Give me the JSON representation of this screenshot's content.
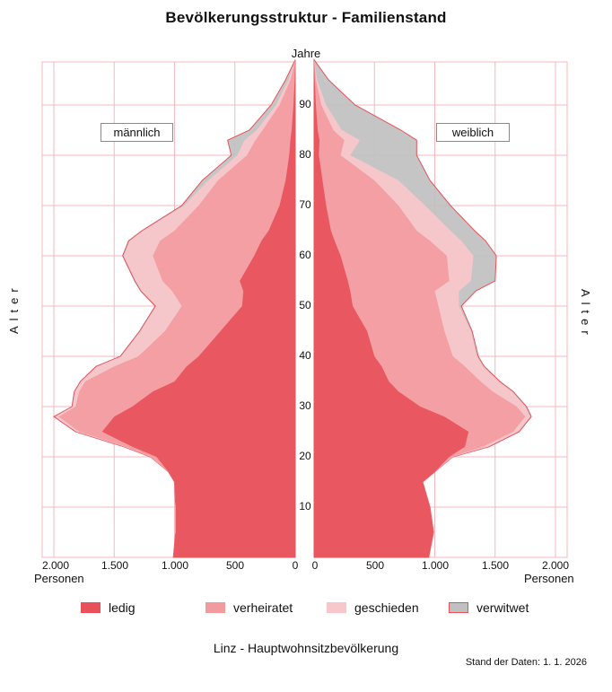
{
  "title": "Bevölkerungsstruktur - Familienstand",
  "axis": {
    "age_label": "Jahre",
    "side_label": "Alter",
    "x_unit_label": "Personen",
    "age_ticks": [
      "10",
      "20",
      "30",
      "40",
      "50",
      "60",
      "70",
      "80",
      "90"
    ],
    "left_ticks": [
      "2.000",
      "1.500",
      "1.000",
      "500",
      "0"
    ],
    "right_ticks": [
      "0",
      "500",
      "1.000",
      "1.500",
      "2.000"
    ]
  },
  "labels": {
    "male": "männlich",
    "female": "weiblich"
  },
  "legend": [
    {
      "key": "ledig",
      "label": "ledig",
      "color": "#E8505A"
    },
    {
      "key": "verheiratet",
      "label": "verheiratet",
      "color": "#F29B9F"
    },
    {
      "key": "geschieden",
      "label": "geschieden",
      "color": "#F8C7CB"
    },
    {
      "key": "verwitwet",
      "label": "verwitwet",
      "color": "#C0C0C0"
    }
  ],
  "colors": {
    "grid": "#F5B8BC",
    "outline": "#E8505A"
  },
  "footer": "Linz - Hauptwohnsitzbevölkerung",
  "stand": "Stand der Daten: 1. 1. 2026",
  "chart_data": {
    "type": "area",
    "subtype": "population-pyramid (stacked, cumulative by marital status)",
    "title": "Bevölkerungsstruktur - Familienstand",
    "subtitle": "Linz - Hauptwohnsitzbevölkerung",
    "note": "Stand der Daten: 1. 1. 2026",
    "ylabel": "Alter (Jahre)",
    "xlabel": "Personen",
    "ylim": [
      0,
      99
    ],
    "xlim": [
      0,
      2000
    ],
    "grid": true,
    "legend_position": "bottom",
    "series_order": [
      "ledig",
      "verheiratet",
      "geschieden",
      "verwitwet"
    ],
    "ages": [
      0,
      5,
      10,
      15,
      17,
      20,
      22,
      25,
      28,
      30,
      33,
      35,
      38,
      40,
      45,
      50,
      53,
      55,
      60,
      63,
      65,
      70,
      75,
      80,
      83,
      85,
      90,
      95,
      99
    ],
    "male": {
      "label": "männlich",
      "cumulative": {
        "ledig": [
          1010,
          990,
          990,
          1000,
          1050,
          1150,
          1350,
          1600,
          1500,
          1350,
          1180,
          1000,
          900,
          800,
          620,
          440,
          430,
          460,
          340,
          280,
          220,
          130,
          80,
          50,
          40,
          30,
          15,
          5,
          0
        ],
        "verheiratet": [
          1010,
          990,
          990,
          1000,
          1050,
          1200,
          1400,
          1790,
          1960,
          1820,
          1790,
          1740,
          1500,
          1300,
          1080,
          940,
          1020,
          1100,
          1180,
          1120,
          1000,
          800,
          640,
          400,
          330,
          270,
          130,
          40,
          0
        ],
        "geschieden": [
          1010,
          990,
          990,
          1000,
          1050,
          1200,
          1415,
          1815,
          1990,
          1845,
          1825,
          1775,
          1640,
          1440,
          1280,
          1150,
          1270,
          1320,
          1420,
          1370,
          1260,
          920,
          720,
          480,
          420,
          320,
          160,
          55,
          0
        ],
        "verwitwet": [
          1010,
          990,
          990,
          1000,
          1050,
          1200,
          1420,
          1820,
          2000,
          1850,
          1830,
          1780,
          1650,
          1450,
          1290,
          1160,
          1280,
          1330,
          1430,
          1380,
          1270,
          940,
          770,
          530,
          560,
          380,
          200,
          80,
          0
        ]
      }
    },
    "female": {
      "label": "weiblich",
      "cumulative": {
        "ledig": [
          950,
          990,
          960,
          900,
          1000,
          1120,
          1250,
          1280,
          1080,
          880,
          700,
          620,
          560,
          500,
          440,
          320,
          300,
          280,
          220,
          170,
          140,
          100,
          70,
          40,
          45,
          30,
          15,
          5,
          0
        ],
        "verheiratet": [
          950,
          990,
          960,
          900,
          1000,
          1140,
          1400,
          1650,
          1750,
          1680,
          1480,
          1380,
          1250,
          1150,
          1080,
          1030,
          1000,
          1120,
          1100,
          960,
          850,
          700,
          500,
          220,
          250,
          160,
          60,
          15,
          0
        ],
        "geschieden": [
          950,
          990,
          960,
          900,
          1000,
          1150,
          1440,
          1690,
          1790,
          1750,
          1640,
          1530,
          1400,
          1350,
          1300,
          1200,
          1200,
          1300,
          1320,
          1220,
          1130,
          920,
          700,
          300,
          380,
          230,
          100,
          25,
          0
        ],
        "verwitwet": [
          950,
          990,
          960,
          900,
          1000,
          1150,
          1450,
          1700,
          1800,
          1760,
          1650,
          1540,
          1410,
          1360,
          1310,
          1220,
          1340,
          1500,
          1510,
          1420,
          1330,
          1130,
          960,
          850,
          850,
          720,
          340,
          120,
          0
        ]
      }
    }
  }
}
